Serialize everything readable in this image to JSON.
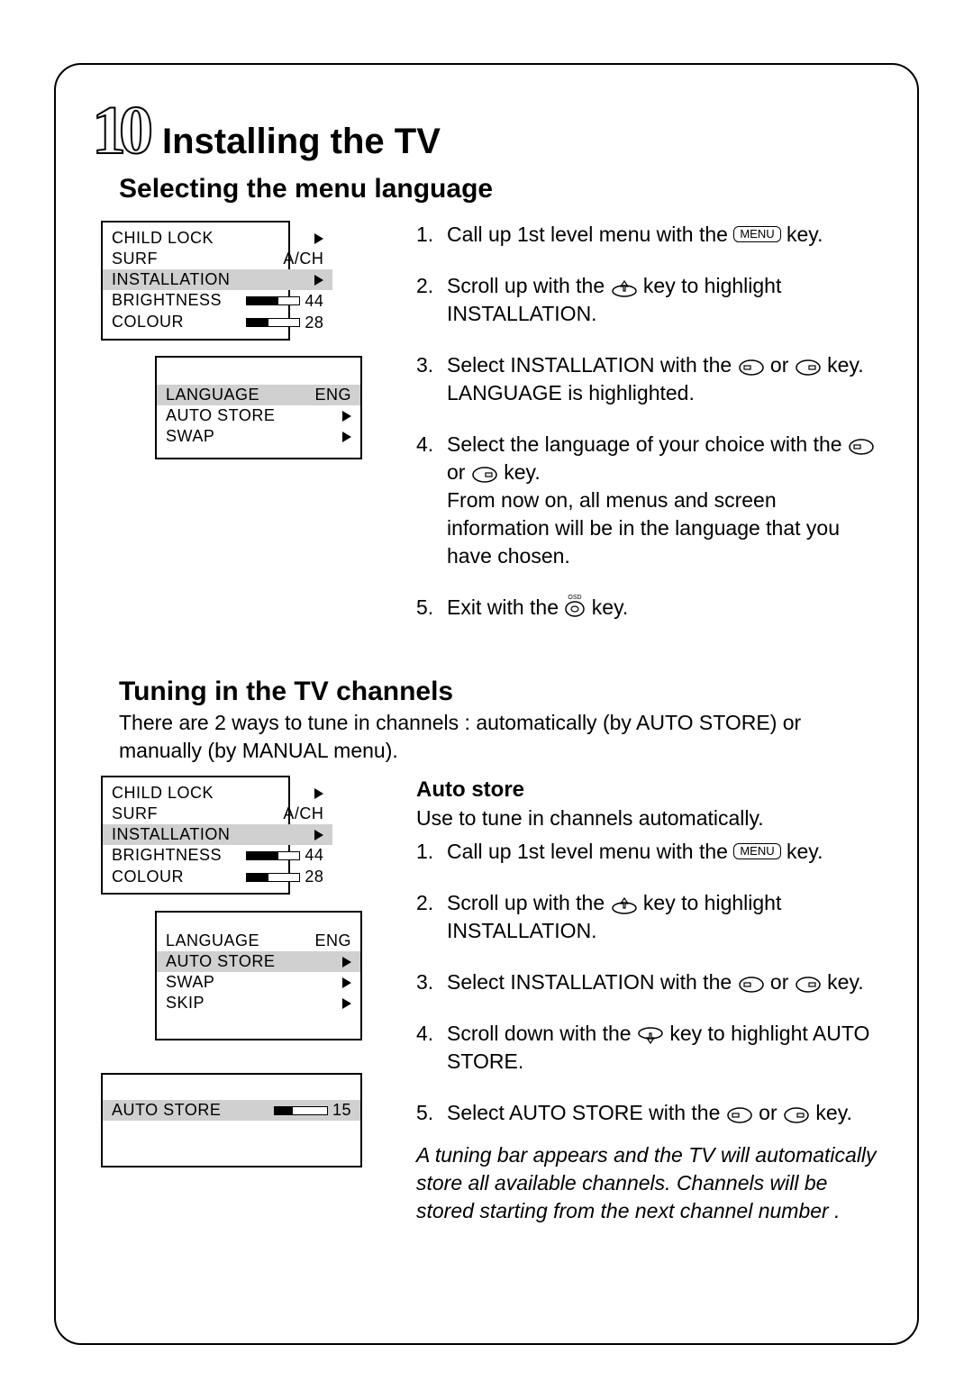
{
  "chapter_number": "10",
  "chapter_title": "Installing the TV",
  "section1_title": "Selecting the menu language",
  "section2_title": "Tuning in the TV channels",
  "section2_intro": "There are 2 ways to tune in channels : automatically (by AUTO STORE) or manually (by MANUAL menu).",
  "autostore_title": "Auto store",
  "autostore_intro": "Use to tune in channels automatically.",
  "menu_key_label": "MENU",
  "osd_label": "OSD",
  "colors": {
    "text": "#000000",
    "background": "#ffffff",
    "highlight": "#d0d0d0"
  },
  "menu1": {
    "top": {
      "rows": [
        {
          "label": "CHILD LOCK",
          "val_type": "tri"
        },
        {
          "label": "SURF",
          "val_type": "text",
          "val": "A/CH"
        },
        {
          "label": "INSTALLATION",
          "val_type": "tri",
          "highlight": true
        },
        {
          "label": "BRIGHTNESS",
          "val_type": "bar",
          "val": "44",
          "bar_pct": 60
        },
        {
          "label": "COLOUR",
          "val_type": "bar",
          "val": "28",
          "bar_pct": 40
        }
      ]
    },
    "sub": {
      "rows": [
        {
          "label": "LANGUAGE",
          "val_type": "text",
          "val": "ENG",
          "highlight": true
        },
        {
          "label": "AUTO STORE",
          "val_type": "tri"
        },
        {
          "label": "SWAP",
          "val_type": "tri"
        }
      ]
    }
  },
  "menu2": {
    "top": {
      "rows": [
        {
          "label": "CHILD LOCK",
          "val_type": "tri"
        },
        {
          "label": "SURF",
          "val_type": "text",
          "val": "A/CH"
        },
        {
          "label": "INSTALLATION",
          "val_type": "tri",
          "highlight": true
        },
        {
          "label": "BRIGHTNESS",
          "val_type": "bar",
          "val": "44",
          "bar_pct": 60
        },
        {
          "label": "COLOUR",
          "val_type": "bar",
          "val": "28",
          "bar_pct": 40
        }
      ]
    },
    "sub": {
      "rows": [
        {
          "label": "LANGUAGE",
          "val_type": "text",
          "val": "ENG"
        },
        {
          "label": "AUTO STORE",
          "val_type": "tri",
          "highlight": true
        },
        {
          "label": "SWAP",
          "val_type": "tri"
        },
        {
          "label": "SKIP",
          "val_type": "tri"
        }
      ]
    },
    "third": {
      "rows": [
        {
          "label": "AUTO STORE",
          "val_type": "bar",
          "val": "15",
          "bar_pct": 35,
          "highlight": true
        }
      ]
    }
  },
  "steps1": {
    "s1a": "Call up 1st level menu with the ",
    "s1b": " key.",
    "s2a": "Scroll up with the ",
    "s2b": " key to highlight INSTALLATION.",
    "s3a": "Select INSTALLATION with the ",
    "s3b": " or ",
    "s3c": " key.",
    "s3d": "LANGUAGE is highlighted.",
    "s4a": "Select the language of your choice with the ",
    "s4b": " or ",
    "s4c": " key.",
    "s4d": "From now on, all menus and screen information will be in the language that you have chosen.",
    "s5a": "Exit with the ",
    "s5b": " key."
  },
  "steps2": {
    "s1a": "Call up 1st level menu with the ",
    "s1b": " key.",
    "s2a": "Scroll up with the ",
    "s2b": " key to highlight INSTALLATION.",
    "s3a": "Select INSTALLATION with the ",
    "s3b": " or ",
    "s3c": " key.",
    "s4a": "Scroll down with the ",
    "s4b": " key to highlight AUTO STORE.",
    "s5a": "Select AUTO STORE with the ",
    "s5b": " or ",
    "s5c": " key.",
    "note": "A tuning bar appears and the TV will automatically store all available channels. Channels will be stored starting from the next channel number ."
  }
}
